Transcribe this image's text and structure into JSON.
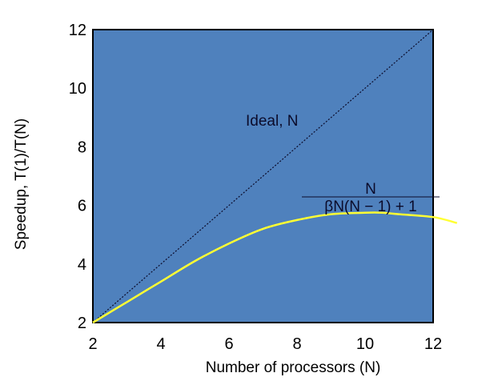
{
  "chart_data": {
    "type": "line",
    "xlabel": "Number of processors (N)",
    "ylabel": "Speedup, T(1)/T(N)",
    "xlim": [
      2,
      12
    ],
    "ylim": [
      2,
      12
    ],
    "x_ticks": [
      "2",
      "4",
      "6",
      "8",
      "10",
      "12"
    ],
    "y_ticks": [
      "2",
      "4",
      "6",
      "8",
      "10",
      "12"
    ],
    "grid": false,
    "series": [
      {
        "name": "Ideal, N",
        "style": "dotted",
        "color": "#0b0b2a",
        "x": [
          2,
          12
        ],
        "y": [
          2,
          12
        ]
      },
      {
        "style": "solid",
        "color": "#ffff33",
        "x": [
          2,
          3,
          4,
          5,
          6,
          7,
          8,
          9,
          10,
          10.5,
          11,
          12,
          12.7
        ],
        "y": [
          2.0,
          2.7,
          3.4,
          4.1,
          4.7,
          5.2,
          5.5,
          5.7,
          5.75,
          5.75,
          5.7,
          5.6,
          5.4
        ]
      }
    ],
    "annotations": {
      "ideal_label": "Ideal, N",
      "formula_numerator": "N",
      "formula_denominator": "βN(N − 1) + 1"
    },
    "colors": {
      "plot_background": "#4f81bd",
      "frame": "#000000"
    }
  }
}
